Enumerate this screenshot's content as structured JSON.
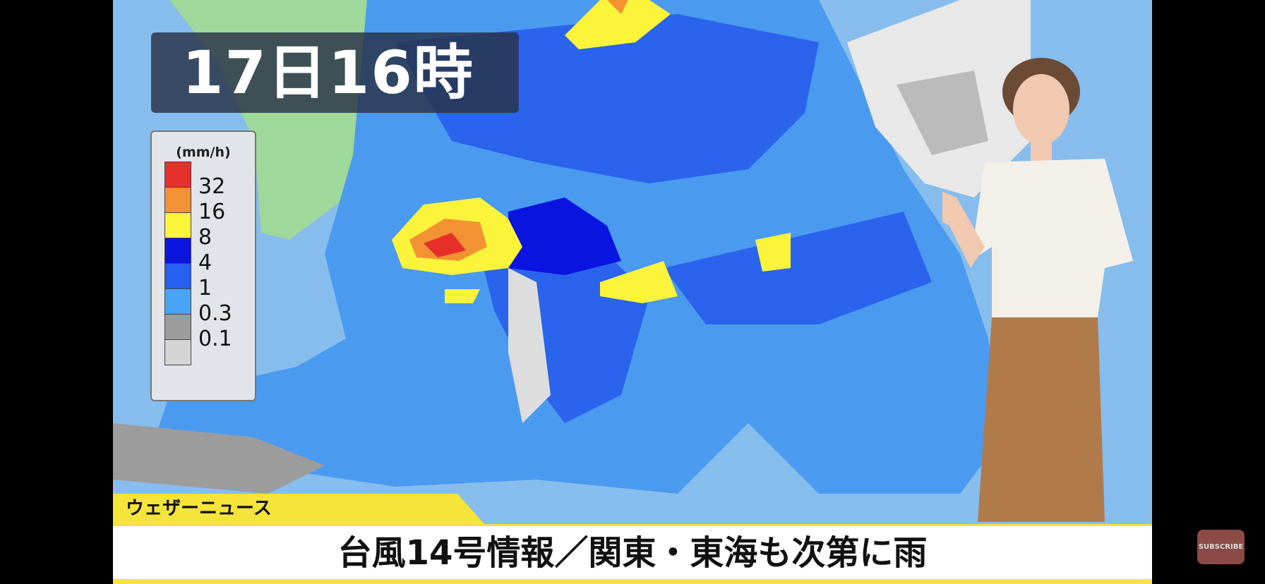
{
  "overlay": {
    "time": "17日16時"
  },
  "legend": {
    "unit": "(mm/h)",
    "bins": [
      {
        "color": "#e8302a",
        "label": "32"
      },
      {
        "color": "#f39233",
        "label": "16"
      },
      {
        "color": "#fbf43a",
        "label": "8"
      },
      {
        "color": "#0a14e0",
        "label": "4"
      },
      {
        "color": "#2660f0",
        "label": "1"
      },
      {
        "color": "#48a4f4",
        "label": "0.3"
      },
      {
        "color": "#9c9c9c",
        "label": "0.1"
      },
      {
        "color": "#d4d4d4",
        "label": ""
      }
    ]
  },
  "ticker": {
    "program": "ウェザーニュース",
    "headline": "台風14号情報／関東・東海も次第に雨"
  },
  "player": {
    "subscribe_label": "SUBSCRIBE"
  }
}
